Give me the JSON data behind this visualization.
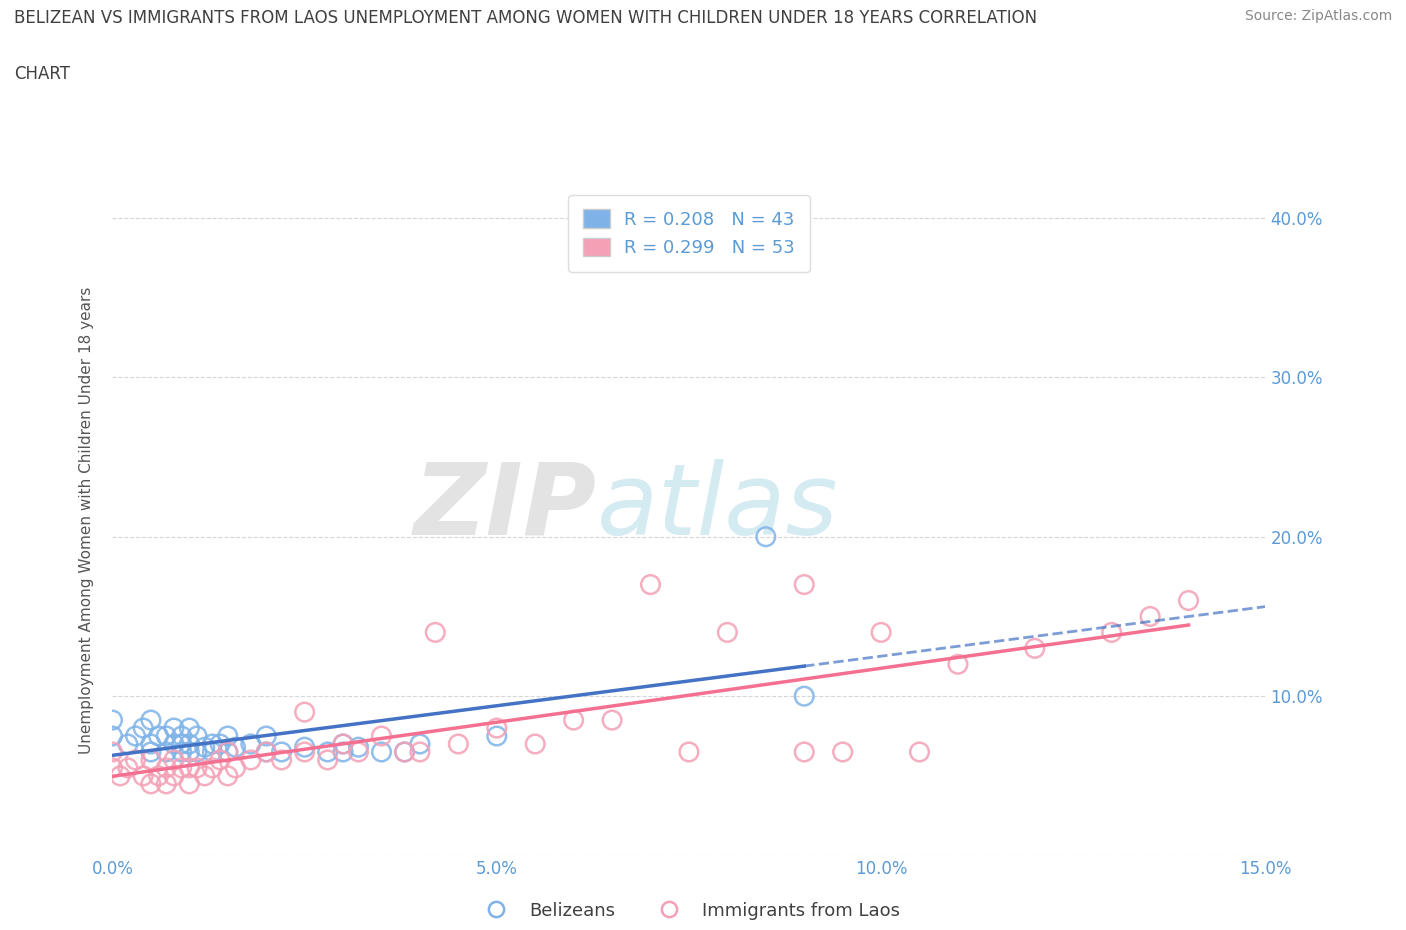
{
  "title_line1": "BELIZEAN VS IMMIGRANTS FROM LAOS UNEMPLOYMENT AMONG WOMEN WITH CHILDREN UNDER 18 YEARS CORRELATION",
  "title_line2": "CHART",
  "source": "Source: ZipAtlas.com",
  "ylabel": "Unemployment Among Women with Children Under 18 years",
  "xlim": [
    0,
    0.15
  ],
  "ylim": [
    0,
    0.42
  ],
  "xticks": [
    0.0,
    0.05,
    0.1,
    0.15
  ],
  "xtick_labels": [
    "0.0%",
    "5.0%",
    "10.0%",
    "15.0%"
  ],
  "yticks": [
    0.0,
    0.1,
    0.2,
    0.3,
    0.4
  ],
  "ytick_labels": [
    "",
    "10.0%",
    "20.0%",
    "30.0%",
    "40.0%"
  ],
  "R_blue": 0.208,
  "N_blue": 43,
  "R_pink": 0.299,
  "N_pink": 53,
  "blue_color": "#7FB3E8",
  "pink_color": "#F4A0B5",
  "blue_line_color": "#4472C4",
  "pink_line_color": "#F47090",
  "watermark_zip": "ZIP",
  "watermark_atlas": "atlas",
  "legend_label_blue": "Belizeans",
  "legend_label_pink": "Immigrants from Laos",
  "blue_x": [
    0.0,
    0.0,
    0.002,
    0.003,
    0.004,
    0.005,
    0.005,
    0.005,
    0.006,
    0.007,
    0.007,
    0.008,
    0.008,
    0.009,
    0.009,
    0.009,
    0.01,
    0.01,
    0.01,
    0.011,
    0.011,
    0.012,
    0.013,
    0.013,
    0.014,
    0.015,
    0.015,
    0.016,
    0.018,
    0.02,
    0.02,
    0.022,
    0.025,
    0.028,
    0.03,
    0.03,
    0.032,
    0.035,
    0.038,
    0.04,
    0.05,
    0.085,
    0.09
  ],
  "blue_y": [
    0.075,
    0.085,
    0.07,
    0.075,
    0.08,
    0.065,
    0.07,
    0.085,
    0.075,
    0.065,
    0.075,
    0.07,
    0.08,
    0.065,
    0.07,
    0.075,
    0.065,
    0.07,
    0.08,
    0.065,
    0.075,
    0.068,
    0.065,
    0.07,
    0.07,
    0.065,
    0.075,
    0.068,
    0.07,
    0.065,
    0.075,
    0.065,
    0.068,
    0.065,
    0.065,
    0.07,
    0.068,
    0.065,
    0.065,
    0.07,
    0.075,
    0.2,
    0.1
  ],
  "pink_x": [
    0.0,
    0.0,
    0.001,
    0.002,
    0.003,
    0.004,
    0.005,
    0.005,
    0.006,
    0.007,
    0.007,
    0.008,
    0.008,
    0.009,
    0.01,
    0.01,
    0.011,
    0.012,
    0.013,
    0.014,
    0.015,
    0.015,
    0.016,
    0.018,
    0.02,
    0.022,
    0.025,
    0.025,
    0.028,
    0.03,
    0.032,
    0.035,
    0.038,
    0.04,
    0.042,
    0.045,
    0.05,
    0.055,
    0.06,
    0.065,
    0.07,
    0.075,
    0.08,
    0.09,
    0.09,
    0.095,
    0.1,
    0.105,
    0.11,
    0.12,
    0.13,
    0.135,
    0.14
  ],
  "pink_y": [
    0.055,
    0.065,
    0.05,
    0.055,
    0.06,
    0.05,
    0.045,
    0.06,
    0.05,
    0.045,
    0.055,
    0.05,
    0.06,
    0.055,
    0.045,
    0.055,
    0.055,
    0.05,
    0.055,
    0.06,
    0.05,
    0.065,
    0.055,
    0.06,
    0.065,
    0.06,
    0.065,
    0.09,
    0.06,
    0.07,
    0.065,
    0.075,
    0.065,
    0.065,
    0.14,
    0.07,
    0.08,
    0.07,
    0.085,
    0.085,
    0.17,
    0.065,
    0.14,
    0.065,
    0.17,
    0.065,
    0.14,
    0.065,
    0.12,
    0.13,
    0.14,
    0.15,
    0.16
  ]
}
